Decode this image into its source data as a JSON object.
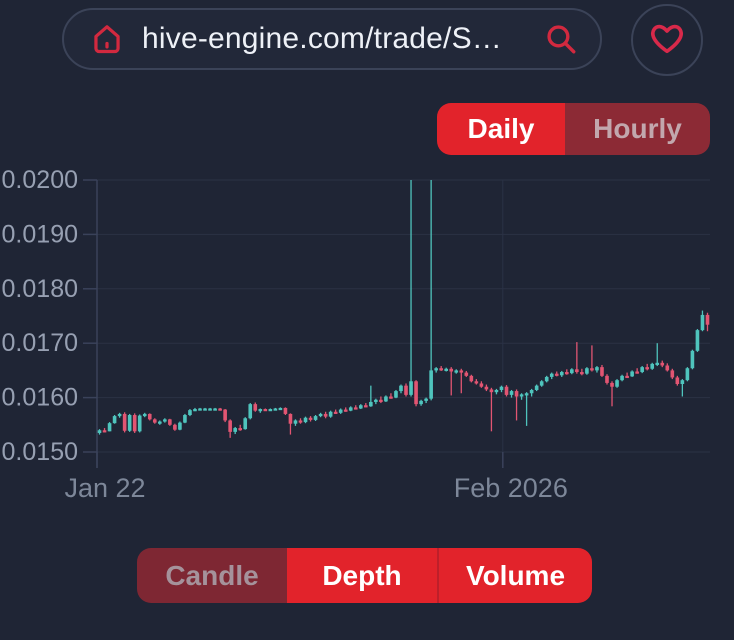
{
  "browser": {
    "url": "hive-engine.com/trade/S…",
    "home_icon": "home-icon",
    "search_icon": "search-icon",
    "favorite_icon": "heart-icon"
  },
  "timeframe_tabs": {
    "daily_label": "Daily",
    "hourly_label": "Hourly",
    "active": "Daily"
  },
  "view_tabs": {
    "candle_label": "Candle",
    "depth_label": "Depth",
    "volume_label": "Volume"
  },
  "colors": {
    "background": "#1f2535",
    "accent_red": "#e2232b",
    "inactive_maroon": "#8c2a35",
    "icon_red": "#d2293f",
    "grid": "#2b3245",
    "axis": "#3a425a",
    "y_label": "#97a0b2",
    "x_label": "#7d8799",
    "candle_up": "#4fc4bd",
    "candle_down": "#e25572"
  },
  "chart_data": {
    "type": "candlestick",
    "title": "",
    "xlabel": "",
    "ylabel": "",
    "ylim": [
      0.015,
      0.02
    ],
    "grid": true,
    "y_ticks": [
      {
        "label": "0.0200",
        "value": 0.02
      },
      {
        "label": "0.0190",
        "value": 0.019
      },
      {
        "label": "0.0180",
        "value": 0.018
      },
      {
        "label": "0.0170",
        "value": 0.017
      },
      {
        "label": "0.0160",
        "value": 0.016
      },
      {
        "label": "0.0150",
        "value": 0.015
      }
    ],
    "x_ticks": [
      {
        "label": "Jan 22",
        "frac": 0.0,
        "gridline": false
      },
      {
        "label": "Feb 2026",
        "frac": 0.662,
        "gridline": true
      }
    ],
    "candles_format": [
      "open",
      "high",
      "low",
      "close"
    ],
    "candles": [
      [
        0.01535,
        0.01542,
        0.01532,
        0.0154
      ],
      [
        0.0154,
        0.01544,
        0.01536,
        0.01538
      ],
      [
        0.01538,
        0.01555,
        0.01538,
        0.01553
      ],
      [
        0.01553,
        0.01568,
        0.01552,
        0.01566
      ],
      [
        0.01566,
        0.01572,
        0.01563,
        0.0157
      ],
      [
        0.0157,
        0.01573,
        0.01536,
        0.01539
      ],
      [
        0.01539,
        0.0157,
        0.01537,
        0.01568
      ],
      [
        0.01568,
        0.01571,
        0.01535,
        0.01538
      ],
      [
        0.01538,
        0.01569,
        0.01536,
        0.01567
      ],
      [
        0.01567,
        0.01572,
        0.01564,
        0.0157
      ],
      [
        0.0157,
        0.01571,
        0.01558,
        0.0156
      ],
      [
        0.0156,
        0.01562,
        0.01552,
        0.01554
      ],
      [
        0.01554,
        0.01558,
        0.0155,
        0.01556
      ],
      [
        0.01556,
        0.01562,
        0.01554,
        0.0156
      ],
      [
        0.0156,
        0.01561,
        0.01548,
        0.0155
      ],
      [
        0.0155,
        0.01552,
        0.01539,
        0.01541
      ],
      [
        0.01541,
        0.01556,
        0.0154,
        0.01554
      ],
      [
        0.01554,
        0.0157,
        0.01553,
        0.01568
      ],
      [
        0.01568,
        0.01579,
        0.01566,
        0.01577
      ],
      [
        0.01577,
        0.01581,
        0.01575,
        0.01579
      ],
      [
        0.01579,
        0.01581,
        0.01577,
        0.0158
      ],
      [
        0.0158,
        0.01581,
        0.01578,
        0.0158
      ],
      [
        0.0158,
        0.01581,
        0.01579,
        0.0158
      ],
      [
        0.0158,
        0.01581,
        0.01579,
        0.0158
      ],
      [
        0.0158,
        0.01581,
        0.01576,
        0.01578
      ],
      [
        0.01578,
        0.01579,
        0.01555,
        0.01558
      ],
      [
        0.01558,
        0.0156,
        0.01526,
        0.01537
      ],
      [
        0.01537,
        0.01546,
        0.01533,
        0.01544
      ],
      [
        0.01544,
        0.0155,
        0.01539,
        0.01542
      ],
      [
        0.01542,
        0.01564,
        0.01541,
        0.01562
      ],
      [
        0.01562,
        0.0159,
        0.0156,
        0.01588
      ],
      [
        0.01588,
        0.01591,
        0.01574,
        0.01576
      ],
      [
        0.01576,
        0.0158,
        0.01572,
        0.01579
      ],
      [
        0.01579,
        0.0158,
        0.01576,
        0.01578
      ],
      [
        0.01578,
        0.0158,
        0.01576,
        0.01579
      ],
      [
        0.01579,
        0.01581,
        0.01578,
        0.0158
      ],
      [
        0.0158,
        0.01582,
        0.01579,
        0.01581
      ],
      [
        0.01581,
        0.01582,
        0.01568,
        0.0157
      ],
      [
        0.0157,
        0.01571,
        0.01532,
        0.01552
      ],
      [
        0.01552,
        0.0156,
        0.01548,
        0.01558
      ],
      [
        0.01558,
        0.01562,
        0.01552,
        0.01555
      ],
      [
        0.01555,
        0.01565,
        0.01553,
        0.01563
      ],
      [
        0.01563,
        0.01566,
        0.01556,
        0.01559
      ],
      [
        0.01559,
        0.01568,
        0.01557,
        0.01566
      ],
      [
        0.01566,
        0.01572,
        0.01564,
        0.0157
      ],
      [
        0.0157,
        0.01574,
        0.01562,
        0.01565
      ],
      [
        0.01565,
        0.01576,
        0.01563,
        0.01574
      ],
      [
        0.01574,
        0.01578,
        0.0157,
        0.01572
      ],
      [
        0.01572,
        0.0158,
        0.0157,
        0.01578
      ],
      [
        0.01578,
        0.01582,
        0.01574,
        0.01576
      ],
      [
        0.01576,
        0.01584,
        0.01575,
        0.01582
      ],
      [
        0.01582,
        0.01586,
        0.01578,
        0.0158
      ],
      [
        0.0158,
        0.01588,
        0.01579,
        0.01586
      ],
      [
        0.01586,
        0.0159,
        0.01582,
        0.01584
      ],
      [
        0.01584,
        0.01622,
        0.01583,
        0.01592
      ],
      [
        0.01592,
        0.01598,
        0.01588,
        0.01596
      ],
      [
        0.01596,
        0.01602,
        0.0159,
        0.01593
      ],
      [
        0.01593,
        0.01604,
        0.01592,
        0.01602
      ],
      [
        0.01602,
        0.01608,
        0.01598,
        0.016
      ],
      [
        0.016,
        0.01614,
        0.01599,
        0.01612
      ],
      [
        0.01612,
        0.01624,
        0.01608,
        0.01622
      ],
      [
        0.01622,
        0.01626,
        0.01602,
        0.01605
      ],
      [
        0.01605,
        0.02,
        0.01602,
        0.0163
      ],
      [
        0.0163,
        0.01632,
        0.01584,
        0.01588
      ],
      [
        0.01588,
        0.01596,
        0.01585,
        0.01594
      ],
      [
        0.01594,
        0.016,
        0.0159,
        0.01598
      ],
      [
        0.01598,
        0.02,
        0.01595,
        0.0165
      ],
      [
        0.0165,
        0.01656,
        0.01646,
        0.01654
      ],
      [
        0.01654,
        0.01658,
        0.01649,
        0.01651
      ],
      [
        0.01651,
        0.01655,
        0.01648,
        0.01653
      ],
      [
        0.01653,
        0.01656,
        0.01604,
        0.01648
      ],
      [
        0.01648,
        0.01652,
        0.01644,
        0.0165
      ],
      [
        0.0165,
        0.01653,
        0.01608,
        0.01646
      ],
      [
        0.01646,
        0.01649,
        0.01638,
        0.0164
      ],
      [
        0.0164,
        0.01642,
        0.01628,
        0.0163
      ],
      [
        0.0163,
        0.01634,
        0.01624,
        0.01626
      ],
      [
        0.01626,
        0.0163,
        0.01618,
        0.0162
      ],
      [
        0.0162,
        0.01624,
        0.01612,
        0.01615
      ],
      [
        0.01615,
        0.01618,
        0.01538,
        0.0161
      ],
      [
        0.0161,
        0.01616,
        0.01606,
        0.01614
      ],
      [
        0.01614,
        0.01622,
        0.0161,
        0.0162
      ],
      [
        0.0162,
        0.01623,
        0.01602,
        0.01605
      ],
      [
        0.01605,
        0.01614,
        0.016,
        0.01612
      ],
      [
        0.01612,
        0.01615,
        0.01558,
        0.01602
      ],
      [
        0.01602,
        0.01608,
        0.01596,
        0.01606
      ],
      [
        0.01606,
        0.0161,
        0.01548,
        0.01608
      ],
      [
        0.01608,
        0.01616,
        0.01602,
        0.01614
      ],
      [
        0.01614,
        0.01624,
        0.01612,
        0.01622
      ],
      [
        0.01622,
        0.01632,
        0.0162,
        0.0163
      ],
      [
        0.0163,
        0.0164,
        0.01628,
        0.01638
      ],
      [
        0.01638,
        0.01646,
        0.01634,
        0.01644
      ],
      [
        0.01644,
        0.01648,
        0.01639,
        0.01641
      ],
      [
        0.01641,
        0.01649,
        0.01638,
        0.01647
      ],
      [
        0.01647,
        0.01652,
        0.01642,
        0.01645
      ],
      [
        0.01645,
        0.01654,
        0.01643,
        0.01652
      ],
      [
        0.01652,
        0.01702,
        0.01644,
        0.01647
      ],
      [
        0.01647,
        0.01653,
        0.01641,
        0.01644
      ],
      [
        0.01644,
        0.01656,
        0.01642,
        0.01654
      ],
      [
        0.01654,
        0.01696,
        0.01648,
        0.0165
      ],
      [
        0.0165,
        0.01658,
        0.01646,
        0.01656
      ],
      [
        0.01656,
        0.0166,
        0.01638,
        0.0164
      ],
      [
        0.0164,
        0.01643,
        0.01624,
        0.01627
      ],
      [
        0.01627,
        0.0163,
        0.01584,
        0.0162
      ],
      [
        0.0162,
        0.01634,
        0.01618,
        0.01632
      ],
      [
        0.01632,
        0.01642,
        0.0163,
        0.0164
      ],
      [
        0.0164,
        0.01646,
        0.01636,
        0.01639
      ],
      [
        0.01639,
        0.0165,
        0.01638,
        0.01648
      ],
      [
        0.01648,
        0.01654,
        0.01644,
        0.01647
      ],
      [
        0.01647,
        0.01658,
        0.01645,
        0.01656
      ],
      [
        0.01656,
        0.01662,
        0.0165,
        0.01653
      ],
      [
        0.01653,
        0.01664,
        0.01651,
        0.01662
      ],
      [
        0.01662,
        0.017,
        0.01658,
        0.01664
      ],
      [
        0.01664,
        0.01668,
        0.01656,
        0.01659
      ],
      [
        0.01659,
        0.01663,
        0.01648,
        0.0165
      ],
      [
        0.0165,
        0.01653,
        0.01634,
        0.01637
      ],
      [
        0.01637,
        0.0164,
        0.01622,
        0.01625
      ],
      [
        0.01625,
        0.01634,
        0.01602,
        0.01632
      ],
      [
        0.01632,
        0.01656,
        0.0163,
        0.01654
      ],
      [
        0.01654,
        0.01688,
        0.01652,
        0.01686
      ],
      [
        0.01686,
        0.01726,
        0.01684,
        0.01724
      ],
      [
        0.01724,
        0.0176,
        0.01722,
        0.01752
      ],
      [
        0.01752,
        0.01756,
        0.01722,
        0.01734
      ]
    ]
  }
}
